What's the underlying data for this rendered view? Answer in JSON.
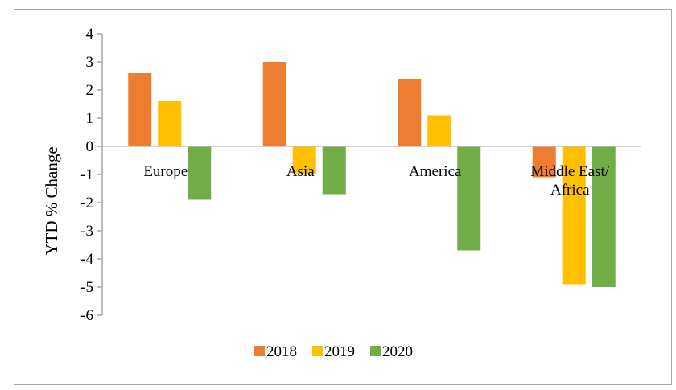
{
  "chart_data": {
    "type": "bar",
    "categories": [
      "Europe",
      "Asia",
      "America",
      "Middle East/ Africa"
    ],
    "category_lines": [
      [
        "Europe"
      ],
      [
        "Asia"
      ],
      [
        "America"
      ],
      [
        "Middle East/",
        "Africa"
      ]
    ],
    "series": [
      {
        "name": "2018",
        "color": "#ed7d31",
        "values": [
          2.6,
          3.0,
          2.4,
          -1.1
        ]
      },
      {
        "name": "2019",
        "color": "#ffc000",
        "values": [
          1.6,
          -1.0,
          1.1,
          -4.9
        ]
      },
      {
        "name": "2020",
        "color": "#70ad47",
        "values": [
          -1.9,
          -1.7,
          -3.7,
          -5.0
        ]
      }
    ],
    "title": "",
    "xlabel": "",
    "ylabel": "YTD % Change",
    "ylim": [
      -6,
      4
    ],
    "yticks": [
      "4",
      "3",
      "2",
      "1",
      "0",
      "-1",
      "-2",
      "-3",
      "-4",
      "-5",
      "-6"
    ],
    "grid": false,
    "legend": "bottom"
  }
}
